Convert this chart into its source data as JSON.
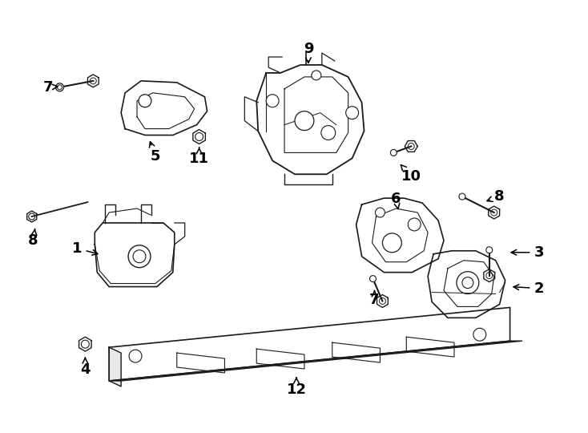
{
  "bg_color": "#ffffff",
  "line_color": "#1a1a1a",
  "text_color": "#000000",
  "fig_width": 7.34,
  "fig_height": 5.4,
  "dpi": 100
}
